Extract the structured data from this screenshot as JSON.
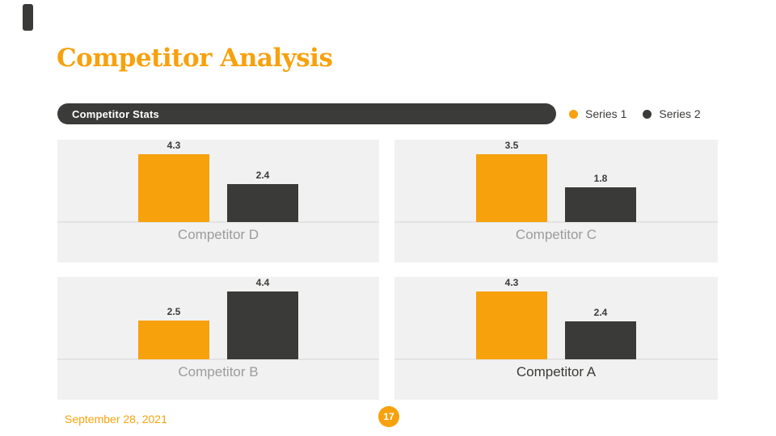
{
  "slide": {
    "title": "Competitor Analysis",
    "section_label": "Competitor Stats",
    "footer_date": "September 28, 2021",
    "page_number": "17"
  },
  "colors": {
    "accent_orange": "#f7a10d",
    "dark": "#3a3a38",
    "panel_bg": "#f1f1f1",
    "baseline_gray": "#e3e3e3",
    "muted_label_gray": "#9b9b9b",
    "white": "#ffffff"
  },
  "legend": [
    {
      "name": "Series 1",
      "color": "#f7a10d"
    },
    {
      "name": "Series 2",
      "color": "#3a3a38"
    }
  ],
  "chart_data": [
    {
      "type": "bar",
      "title": "Competitor D",
      "position": "top-left",
      "categories": [
        "Series 1",
        "Series 2"
      ],
      "series": [
        {
          "name": "Series 1",
          "value": 4.3,
          "color": "#f7a10d"
        },
        {
          "name": "Series 2",
          "value": 2.4,
          "color": "#3a3a38"
        }
      ],
      "data_labels": [
        "4.3",
        "2.4"
      ],
      "title_color": "#9b9b9b",
      "axes": "hidden",
      "grid": "off",
      "scale": "bars scaled relative to panel max"
    },
    {
      "type": "bar",
      "title": "Competitor C",
      "position": "top-right",
      "categories": [
        "Series 1",
        "Series 2"
      ],
      "series": [
        {
          "name": "Series 1",
          "value": 3.5,
          "color": "#f7a10d"
        },
        {
          "name": "Series 2",
          "value": 1.8,
          "color": "#3a3a38"
        }
      ],
      "data_labels": [
        "3.5",
        "1.8"
      ],
      "title_color": "#9b9b9b",
      "axes": "hidden",
      "grid": "off",
      "scale": "bars scaled relative to panel max"
    },
    {
      "type": "bar",
      "title": "Competitor B",
      "position": "bottom-left",
      "categories": [
        "Series 1",
        "Series 2"
      ],
      "series": [
        {
          "name": "Series 1",
          "value": 2.5,
          "color": "#f7a10d"
        },
        {
          "name": "Series 2",
          "value": 4.4,
          "color": "#3a3a38"
        }
      ],
      "data_labels": [
        "2.5",
        "4.4"
      ],
      "title_color": "#9b9b9b",
      "axes": "hidden",
      "grid": "off",
      "scale": "bars scaled relative to panel max"
    },
    {
      "type": "bar",
      "title": "Competitor A",
      "position": "bottom-right",
      "categories": [
        "Series 1",
        "Series 2"
      ],
      "series": [
        {
          "name": "Series 1",
          "value": 4.3,
          "color": "#f7a10d"
        },
        {
          "name": "Series 2",
          "value": 2.4,
          "color": "#3a3a38"
        }
      ],
      "data_labels": [
        "4.3",
        "2.4"
      ],
      "title_color": "#3a3a38",
      "axes": "hidden",
      "grid": "off",
      "scale": "bars scaled relative to panel max"
    }
  ]
}
